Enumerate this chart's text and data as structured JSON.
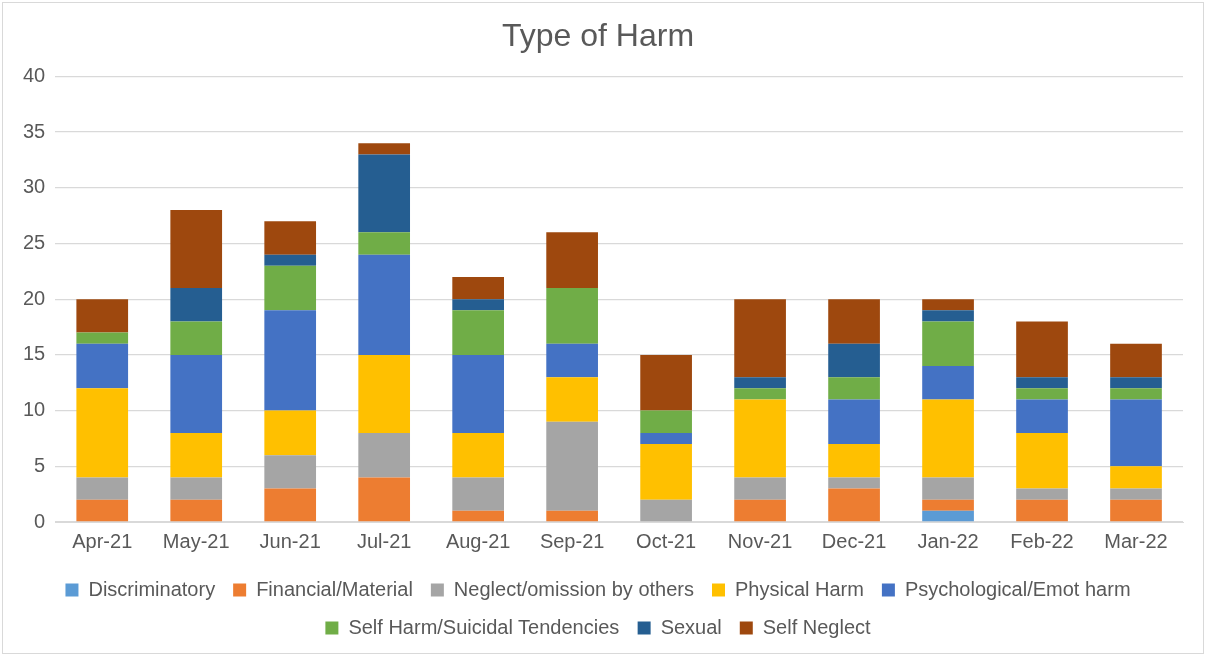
{
  "chart_data": {
    "type": "bar",
    "title": "Type of Harm",
    "stacked": true,
    "grid": "y",
    "legend": "bottom",
    "categories": [
      "Apr-21",
      "May-21",
      "Jun-21",
      "Jul-21",
      "Aug-21",
      "Sep-21",
      "Oct-21",
      "Nov-21",
      "Dec-21",
      "Jan-22",
      "Feb-22",
      "Mar-22"
    ],
    "ylim": [
      0,
      40
    ],
    "yticks": [
      0,
      5,
      10,
      15,
      20,
      25,
      30,
      35,
      40
    ],
    "series": [
      {
        "name": "Discriminatory",
        "color": "#5b9bd5",
        "values": [
          0,
          0,
          0,
          0,
          0,
          0,
          0,
          0,
          0,
          1,
          0,
          0
        ]
      },
      {
        "name": "Financial/Material",
        "color": "#ed7d31",
        "values": [
          2,
          2,
          3,
          4,
          1,
          1,
          0,
          2,
          3,
          1,
          2,
          2
        ]
      },
      {
        "name": "Neglect/omission by others",
        "color": "#a5a5a5",
        "values": [
          2,
          2,
          3,
          4,
          3,
          8,
          2,
          2,
          1,
          2,
          1,
          1
        ]
      },
      {
        "name": "Physical Harm",
        "color": "#ffc000",
        "values": [
          8,
          4,
          4,
          7,
          4,
          4,
          5,
          7,
          3,
          7,
          5,
          2
        ]
      },
      {
        "name": "Psychological/Emot harm",
        "color": "#4472c4",
        "values": [
          4,
          7,
          9,
          9,
          7,
          3,
          1,
          0,
          4,
          3,
          3,
          6
        ]
      },
      {
        "name": "Self Harm/Suicidal Tendencies",
        "color": "#70ad47",
        "values": [
          1,
          3,
          4,
          2,
          4,
          5,
          2,
          1,
          2,
          4,
          1,
          1
        ]
      },
      {
        "name": "Sexual",
        "color": "#255e91",
        "values": [
          0,
          3,
          1,
          7,
          1,
          0,
          0,
          1,
          3,
          1,
          1,
          1
        ]
      },
      {
        "name": "Self Neglect",
        "color": "#9e480e",
        "values": [
          3,
          7,
          3,
          1,
          2,
          5,
          5,
          7,
          4,
          1,
          5,
          3
        ]
      }
    ]
  }
}
